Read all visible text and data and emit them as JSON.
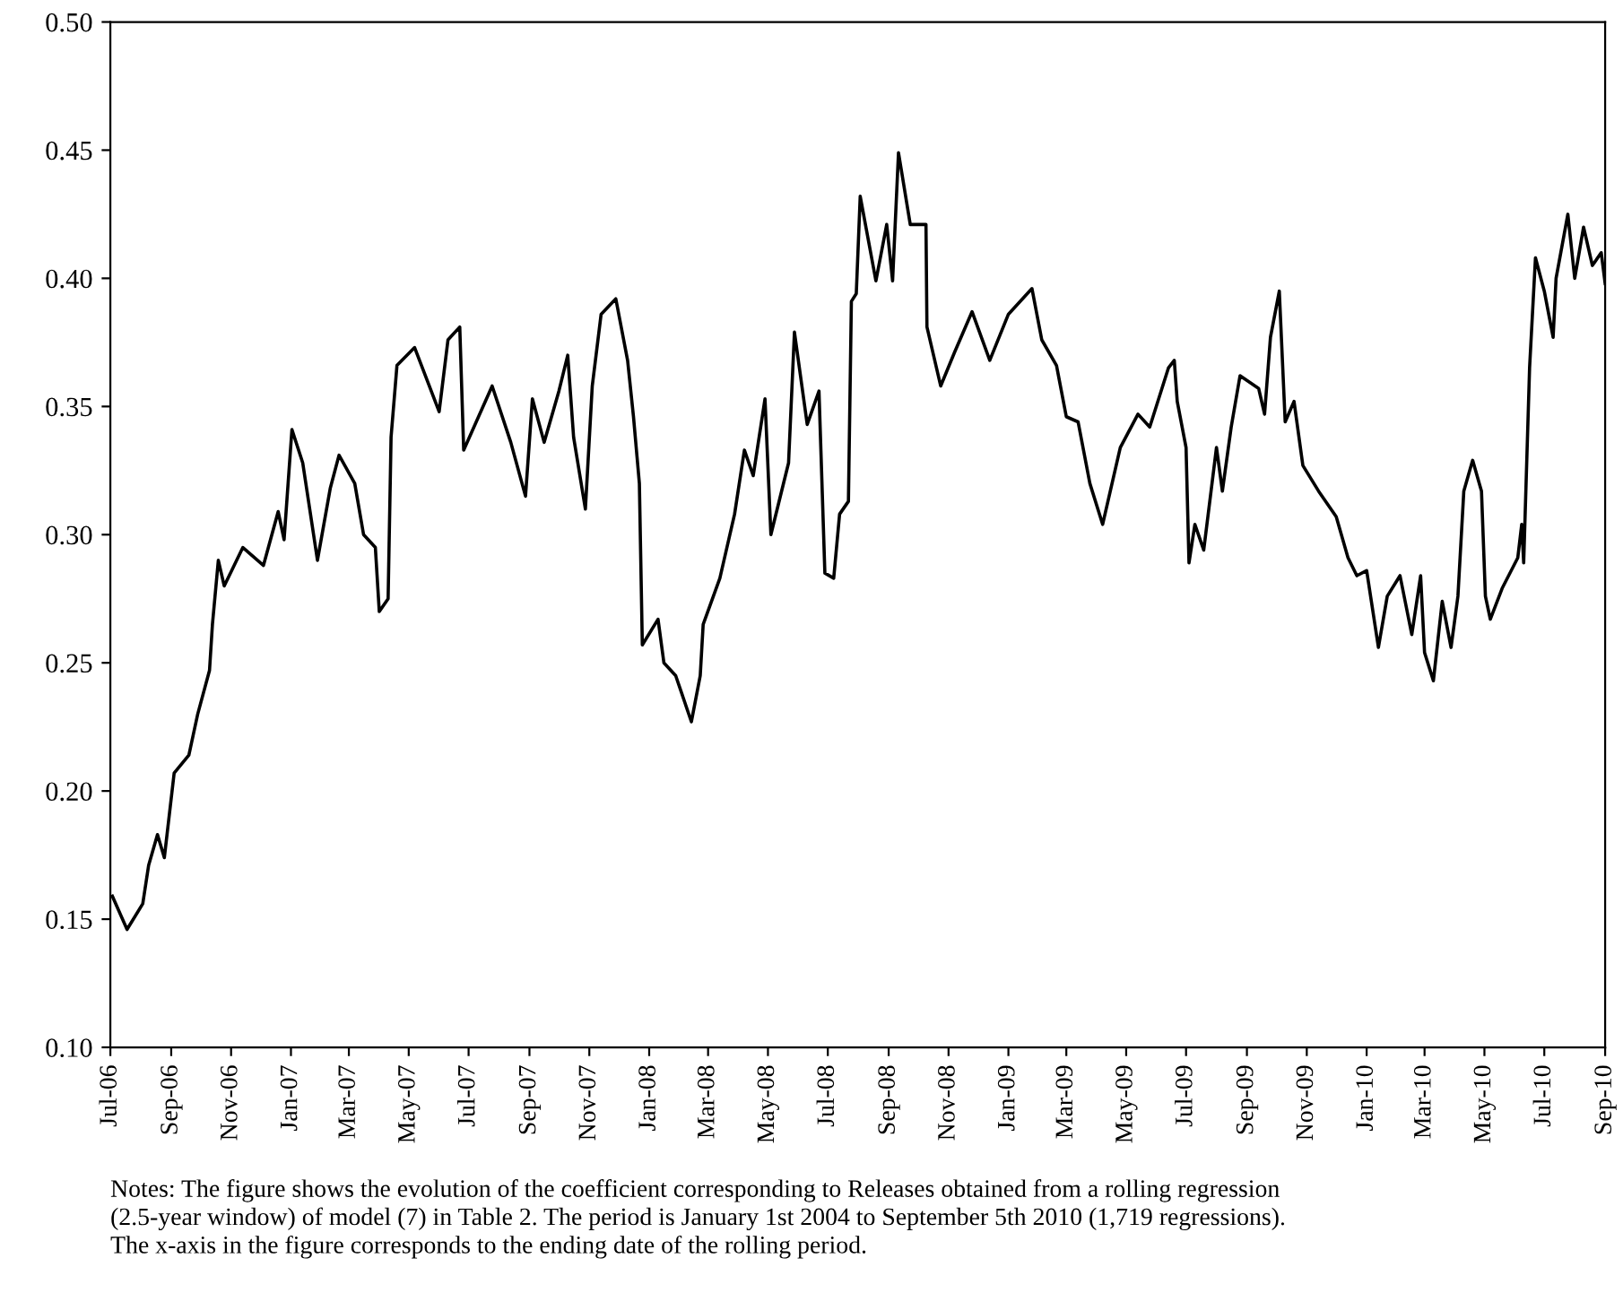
{
  "chart_data": {
    "type": "line",
    "x": [
      "2006-07-03",
      "2006-07-18",
      "2006-08-03",
      "2006-08-09",
      "2006-08-18",
      "2006-08-25",
      "2006-09-04",
      "2006-09-19",
      "2006-09-28",
      "2006-10-10",
      "2006-10-13",
      "2006-10-19",
      "2006-10-25",
      "2006-11-13",
      "2006-12-04",
      "2006-12-19",
      "2006-12-25",
      "2007-01-02",
      "2007-01-13",
      "2007-01-28",
      "2007-02-10",
      "2007-02-19",
      "2007-03-07",
      "2007-03-16",
      "2007-03-28",
      "2007-04-01",
      "2007-04-10",
      "2007-04-13",
      "2007-04-19",
      "2007-05-07",
      "2007-06-01",
      "2007-06-10",
      "2007-06-22",
      "2007-06-26",
      "2007-07-25",
      "2007-08-13",
      "2007-08-28",
      "2007-09-04",
      "2007-09-16",
      "2007-10-01",
      "2007-10-10",
      "2007-10-16",
      "2007-10-28",
      "2007-11-04",
      "2007-11-13",
      "2007-11-28",
      "2007-12-10",
      "2007-12-16",
      "2007-12-22",
      "2007-12-25",
      "2008-01-10",
      "2008-01-16",
      "2008-01-28",
      "2008-02-13",
      "2008-02-22",
      "2008-02-25",
      "2008-03-13",
      "2008-03-28",
      "2008-04-07",
      "2008-04-16",
      "2008-04-28",
      "2008-05-04",
      "2008-05-22",
      "2008-05-28",
      "2008-06-10",
      "2008-06-22",
      "2008-06-28",
      "2008-07-07",
      "2008-07-13",
      "2008-07-22",
      "2008-07-25",
      "2008-07-30",
      "2008-08-03",
      "2008-08-19",
      "2008-08-30",
      "2008-09-05",
      "2008-09-11",
      "2008-09-23",
      "2008-10-09",
      "2008-10-10",
      "2008-10-24",
      "2008-11-07",
      "2008-11-25",
      "2008-12-13",
      "2009-01-01",
      "2009-01-25",
      "2009-02-04",
      "2009-02-19",
      "2009-03-01",
      "2009-03-13",
      "2009-03-25",
      "2009-04-07",
      "2009-04-25",
      "2009-05-13",
      "2009-05-25",
      "2009-06-13",
      "2009-06-19",
      "2009-06-22",
      "2009-07-01",
      "2009-07-04",
      "2009-07-10",
      "2009-07-19",
      "2009-08-01",
      "2009-08-07",
      "2009-08-16",
      "2009-08-25",
      "2009-09-13",
      "2009-09-19",
      "2009-09-25",
      "2009-10-04",
      "2009-10-10",
      "2009-10-19",
      "2009-10-28",
      "2009-11-13",
      "2009-12-01",
      "2009-12-13",
      "2009-12-22",
      "2010-01-01",
      "2010-01-13",
      "2010-01-22",
      "2010-02-04",
      "2010-02-16",
      "2010-02-25",
      "2010-03-01",
      "2010-03-10",
      "2010-03-19",
      "2010-03-28",
      "2010-04-04",
      "2010-04-10",
      "2010-04-19",
      "2010-04-28",
      "2010-05-02",
      "2010-05-07",
      "2010-05-19",
      "2010-06-04",
      "2010-06-08",
      "2010-06-10",
      "2010-06-16",
      "2010-06-22",
      "2010-07-01",
      "2010-07-10",
      "2010-07-13",
      "2010-07-25",
      "2010-08-01",
      "2010-08-10",
      "2010-08-19",
      "2010-08-28",
      "2010-09-01"
    ],
    "series": [
      {
        "color": "#000000",
        "values": [
          0.159,
          0.146,
          0.156,
          0.171,
          0.183,
          0.174,
          0.207,
          0.214,
          0.23,
          0.247,
          0.265,
          0.29,
          0.28,
          0.295,
          0.288,
          0.309,
          0.298,
          0.341,
          0.328,
          0.29,
          0.318,
          0.331,
          0.32,
          0.3,
          0.295,
          0.27,
          0.275,
          0.338,
          0.366,
          0.373,
          0.348,
          0.376,
          0.381,
          0.333,
          0.358,
          0.336,
          0.315,
          0.353,
          0.336,
          0.356,
          0.37,
          0.338,
          0.31,
          0.358,
          0.386,
          0.392,
          0.368,
          0.346,
          0.32,
          0.257,
          0.267,
          0.25,
          0.245,
          0.227,
          0.245,
          0.265,
          0.283,
          0.308,
          0.333,
          0.323,
          0.353,
          0.3,
          0.328,
          0.379,
          0.343,
          0.356,
          0.285,
          0.283,
          0.308,
          0.313,
          0.391,
          0.394,
          0.432,
          0.399,
          0.421,
          0.399,
          0.449,
          0.421,
          0.421,
          0.381,
          0.358,
          0.371,
          0.387,
          0.368,
          0.386,
          0.396,
          0.376,
          0.366,
          0.346,
          0.344,
          0.32,
          0.304,
          0.334,
          0.347,
          0.342,
          0.365,
          0.368,
          0.352,
          0.334,
          0.289,
          0.304,
          0.294,
          0.334,
          0.317,
          0.342,
          0.362,
          0.357,
          0.347,
          0.377,
          0.395,
          0.344,
          0.352,
          0.327,
          0.317,
          0.307,
          0.291,
          0.284,
          0.286,
          0.256,
          0.276,
          0.284,
          0.261,
          0.284,
          0.254,
          0.243,
          0.274,
          0.256,
          0.276,
          0.317,
          0.329,
          0.317,
          0.276,
          0.267,
          0.279,
          0.291,
          0.304,
          0.289,
          0.365,
          0.408,
          0.395,
          0.377,
          0.4,
          0.425,
          0.4,
          0.42,
          0.405,
          0.41,
          0.398
        ]
      }
    ],
    "xlim": [
      "2006-07-01",
      "2010-09-01"
    ],
    "xticks": [
      {
        "value": "2006-07-01",
        "label": "Jul-06"
      },
      {
        "value": "2006-09-01",
        "label": "Sep-06"
      },
      {
        "value": "2006-11-01",
        "label": "Nov-06"
      },
      {
        "value": "2007-01-01",
        "label": "Jan-07"
      },
      {
        "value": "2007-03-01",
        "label": "Mar-07"
      },
      {
        "value": "2007-05-01",
        "label": "May-07"
      },
      {
        "value": "2007-07-01",
        "label": "Jul-07"
      },
      {
        "value": "2007-09-01",
        "label": "Sep-07"
      },
      {
        "value": "2007-11-01",
        "label": "Nov-07"
      },
      {
        "value": "2008-01-01",
        "label": "Jan-08"
      },
      {
        "value": "2008-03-01",
        "label": "Mar-08"
      },
      {
        "value": "2008-05-01",
        "label": "May-08"
      },
      {
        "value": "2008-07-01",
        "label": "Jul-08"
      },
      {
        "value": "2008-09-01",
        "label": "Sep-08"
      },
      {
        "value": "2008-11-01",
        "label": "Nov-08"
      },
      {
        "value": "2009-01-01",
        "label": "Jan-09"
      },
      {
        "value": "2009-03-01",
        "label": "Mar-09"
      },
      {
        "value": "2009-05-01",
        "label": "May-09"
      },
      {
        "value": "2009-07-01",
        "label": "Jul-09"
      },
      {
        "value": "2009-09-01",
        "label": "Sep-09"
      },
      {
        "value": "2009-11-01",
        "label": "Nov-09"
      },
      {
        "value": "2010-01-01",
        "label": "Jan-10"
      },
      {
        "value": "2010-03-01",
        "label": "Mar-10"
      },
      {
        "value": "2010-05-01",
        "label": "May-10"
      },
      {
        "value": "2010-07-01",
        "label": "Jul-10"
      },
      {
        "value": "2010-09-01",
        "label": "Sep-10"
      }
    ],
    "ylim": [
      0.1,
      0.5
    ],
    "yticks": [
      {
        "value": 0.1,
        "label": "0.10"
      },
      {
        "value": 0.15,
        "label": "0.15"
      },
      {
        "value": 0.2,
        "label": "0.20"
      },
      {
        "value": 0.25,
        "label": "0.25"
      },
      {
        "value": 0.3,
        "label": "0.30"
      },
      {
        "value": 0.35,
        "label": "0.35"
      },
      {
        "value": 0.4,
        "label": "0.40"
      },
      {
        "value": 0.45,
        "label": "0.45"
      },
      {
        "value": 0.5,
        "label": "0.50"
      }
    ],
    "grid": false,
    "marker": "none",
    "line_style": "solid",
    "annotations": [
      "Notes: The figure shows the evolution of the coefficient corresponding to Releases obtained from a rolling regression\n(2.5-year window) of model (7) in Table 2. The period is January 1st 2004 to September 5th 2010 (1,719 regressions).\nThe x-axis in the figure corresponds to the ending date of the rolling period."
    ]
  }
}
